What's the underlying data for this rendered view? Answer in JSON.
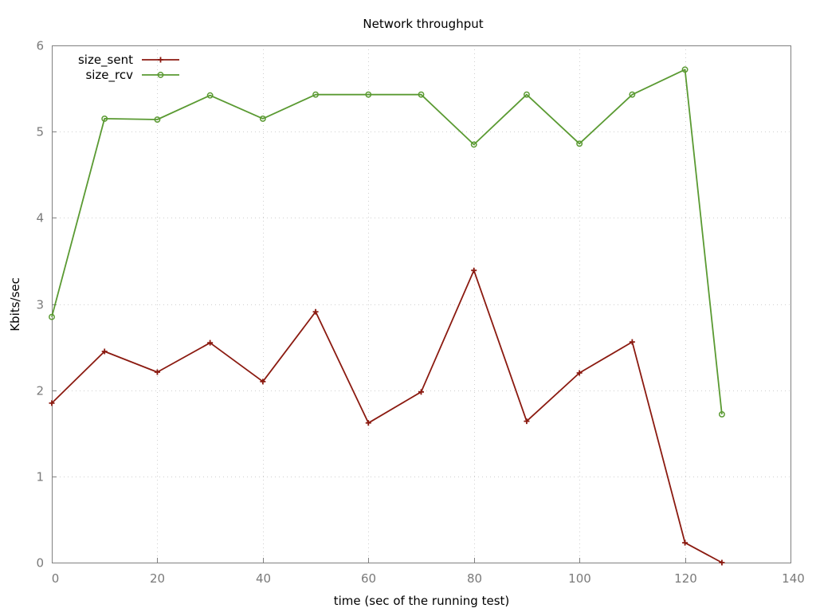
{
  "chart_data": {
    "type": "line",
    "title": "Network throughput",
    "xlabel": "time (sec of the running test)",
    "ylabel": "Kbits/sec",
    "xlim": [
      0,
      140
    ],
    "ylim": [
      0,
      6
    ],
    "xticks": [
      "0",
      "20",
      "40",
      "60",
      "80",
      "100",
      "120",
      "140"
    ],
    "yticks": [
      "0",
      "1",
      "2",
      "3",
      "4",
      "5",
      "6"
    ],
    "grid": true,
    "legend_position": "top-left",
    "series": [
      {
        "name": "size_sent",
        "color": "#8b1a10",
        "marker": "plus",
        "x": [
          0,
          10,
          20,
          30,
          40,
          50,
          60,
          70,
          80,
          90,
          100,
          110,
          120,
          127
        ],
        "y": [
          1.85,
          2.45,
          2.21,
          2.55,
          2.1,
          2.91,
          1.62,
          1.98,
          3.39,
          1.64,
          2.2,
          2.56,
          0.23,
          0.0
        ]
      },
      {
        "name": "size_rcv",
        "color": "#5a9a32",
        "marker": "circle",
        "x": [
          0,
          10,
          20,
          30,
          40,
          50,
          60,
          70,
          80,
          90,
          100,
          110,
          120,
          127
        ],
        "y": [
          2.85,
          5.15,
          5.14,
          5.42,
          5.15,
          5.43,
          5.43,
          5.43,
          4.85,
          5.43,
          4.86,
          5.43,
          5.72,
          1.72
        ]
      }
    ]
  }
}
